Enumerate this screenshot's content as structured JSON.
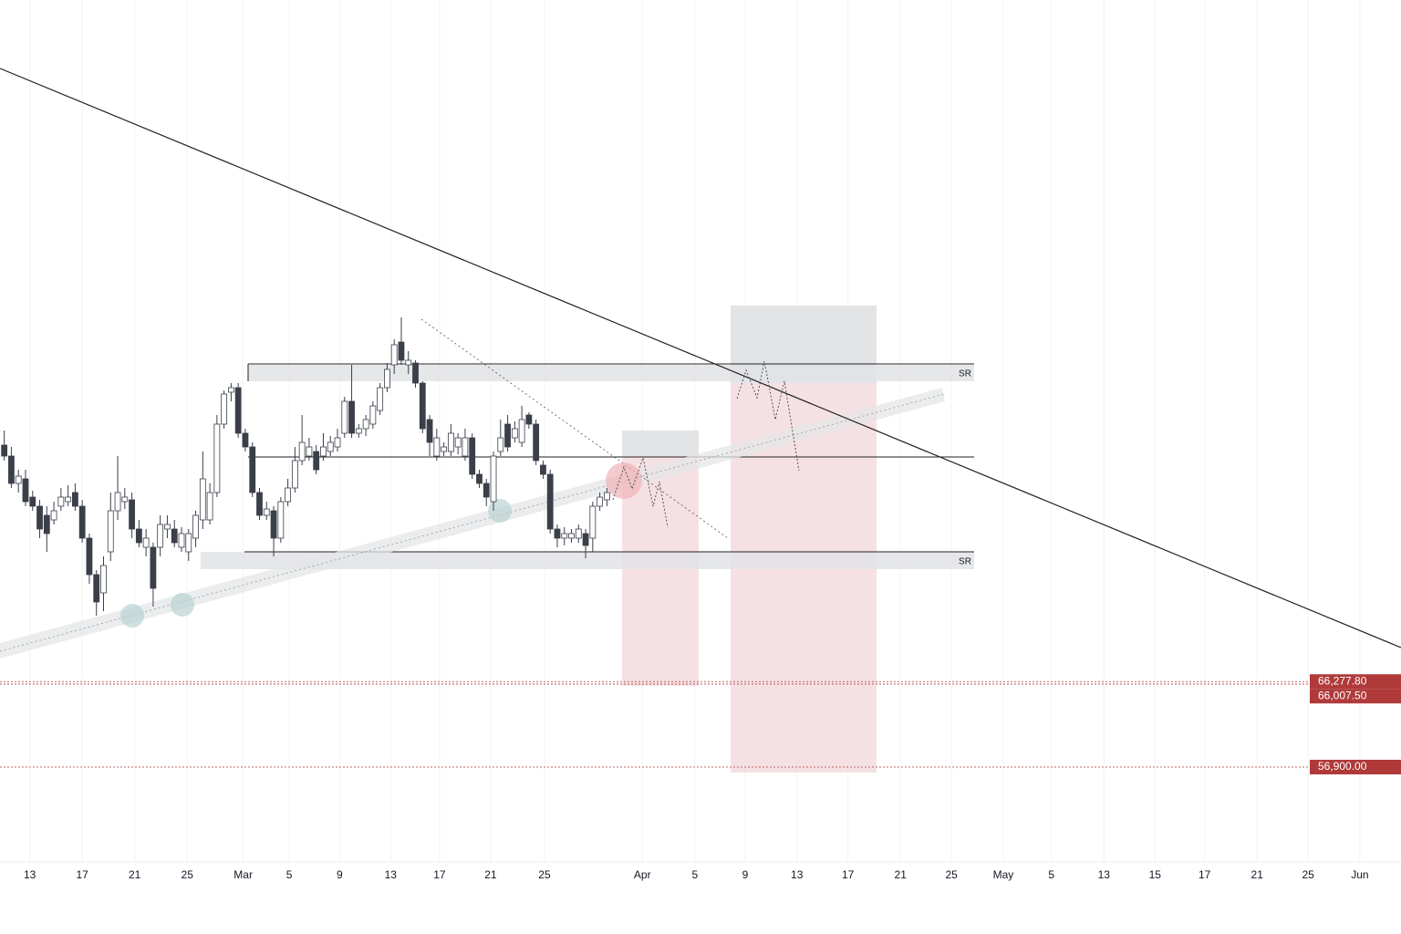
{
  "chart_data": {
    "type": "candlestick",
    "xlim": [
      -0.6,
      197
    ],
    "ylim": [
      46000,
      141000
    ],
    "xticks": [
      {
        "value": 3.6,
        "label": "13"
      },
      {
        "value": 11.0,
        "label": "17"
      },
      {
        "value": 18.4,
        "label": "21"
      },
      {
        "value": 25.8,
        "label": "25"
      },
      {
        "value": 33.7,
        "label": "Mar"
      },
      {
        "value": 40.2,
        "label": "5"
      },
      {
        "value": 47.3,
        "label": "9"
      },
      {
        "value": 54.5,
        "label": "13"
      },
      {
        "value": 61.4,
        "label": "17"
      },
      {
        "value": 68.6,
        "label": "21"
      },
      {
        "value": 76.2,
        "label": "25"
      },
      {
        "value": 90.0,
        "label": "Apr"
      },
      {
        "value": 97.4,
        "label": "5"
      },
      {
        "value": 104.5,
        "label": "9"
      },
      {
        "value": 111.8,
        "label": "13"
      },
      {
        "value": 119.0,
        "label": "17"
      },
      {
        "value": 126.4,
        "label": "21"
      },
      {
        "value": 133.6,
        "label": "25"
      },
      {
        "value": 140.9,
        "label": "May"
      },
      {
        "value": 147.7,
        "label": "5"
      },
      {
        "value": 155.1,
        "label": "13"
      },
      {
        "value": 162.3,
        "label": "15"
      },
      {
        "value": 169.3,
        "label": "17"
      },
      {
        "value": 176.7,
        "label": "21"
      },
      {
        "value": 183.9,
        "label": "25"
      },
      {
        "value": 191.2,
        "label": "Jun"
      }
    ],
    "candles": [
      [
        92200,
        93800,
        90500,
        91000
      ],
      [
        91000,
        92000,
        87500,
        88000
      ],
      [
        88000,
        89500,
        87000,
        88800
      ],
      [
        88500,
        89500,
        85500,
        86000
      ],
      [
        86500,
        87200,
        85000,
        85500
      ],
      [
        85500,
        86200,
        82000,
        83000
      ],
      [
        84500,
        85500,
        80500,
        82500
      ],
      [
        84000,
        86000,
        83500,
        85000
      ],
      [
        85500,
        87500,
        85000,
        86500
      ],
      [
        86000,
        87800,
        85500,
        86500
      ],
      [
        87000,
        88000,
        85000,
        85500
      ],
      [
        85500,
        86200,
        81500,
        82000
      ],
      [
        82000,
        82500,
        77000,
        78000
      ],
      [
        78000,
        78500,
        73500,
        75000
      ],
      [
        76000,
        80000,
        74000,
        79000
      ],
      [
        80500,
        87000,
        79500,
        85000
      ],
      [
        85000,
        91000,
        84000,
        87000
      ],
      [
        86000,
        87500,
        85200,
        86500
      ],
      [
        86200,
        87000,
        82000,
        83000
      ],
      [
        83000,
        84000,
        81000,
        81500
      ],
      [
        81000,
        83000,
        80000,
        82000
      ],
      [
        81000,
        81500,
        74500,
        76500
      ],
      [
        81000,
        84500,
        80000,
        83500
      ],
      [
        83000,
        84500,
        82000,
        83500
      ],
      [
        83000,
        84000,
        81000,
        81500
      ],
      [
        81000,
        83200,
        80500,
        82500
      ],
      [
        80500,
        83000,
        79500,
        82500
      ],
      [
        82000,
        85000,
        81000,
        84500
      ],
      [
        84000,
        91500,
        83000,
        88500
      ],
      [
        84000,
        88000,
        83500,
        87000
      ],
      [
        87000,
        95500,
        86500,
        94500
      ],
      [
        94500,
        98200,
        94000,
        97800
      ],
      [
        98000,
        99000,
        97000,
        98500
      ],
      [
        98500,
        99000,
        93000,
        93500
      ],
      [
        93500,
        94000,
        91500,
        92000
      ],
      [
        92000,
        92500,
        86500,
        87000
      ],
      [
        87000,
        87500,
        84000,
        84500
      ],
      [
        84500,
        86000,
        84000,
        85200
      ],
      [
        85000,
        85500,
        80000,
        82000
      ],
      [
        82000,
        86500,
        81500,
        86000
      ],
      [
        86000,
        88500,
        85500,
        87500
      ],
      [
        87500,
        92000,
        87000,
        90500
      ],
      [
        90500,
        95500,
        90000,
        92500
      ],
      [
        91000,
        93000,
        90500,
        92000
      ],
      [
        91500,
        92200,
        89000,
        89500
      ],
      [
        91000,
        93500,
        90500,
        92000
      ],
      [
        91500,
        93200,
        91000,
        92500
      ],
      [
        92000,
        94000,
        91500,
        93000
      ],
      [
        93500,
        97500,
        93000,
        97000
      ],
      [
        97000,
        101000,
        93000,
        93500
      ],
      [
        93500,
        94500,
        93000,
        94000
      ],
      [
        94000,
        95500,
        93200,
        95000
      ],
      [
        94500,
        97000,
        94000,
        96500
      ],
      [
        96000,
        99000,
        95500,
        98500
      ],
      [
        98500,
        101200,
        98000,
        100500
      ],
      [
        101000,
        103800,
        100000,
        103200
      ],
      [
        103500,
        106200,
        101000,
        101500
      ],
      [
        101000,
        102500,
        100000,
        101500
      ],
      [
        101200,
        101500,
        98500,
        99000
      ],
      [
        99000,
        99200,
        93500,
        94000
      ],
      [
        95000,
        95500,
        91000,
        92500
      ],
      [
        91000,
        94000,
        90500,
        93000
      ],
      [
        91500,
        92500,
        91000,
        92000
      ],
      [
        91500,
        94500,
        91000,
        93500
      ],
      [
        92000,
        93500,
        91200,
        93000
      ],
      [
        91000,
        94000,
        90500,
        93000
      ],
      [
        93000,
        93500,
        88500,
        89000
      ],
      [
        89000,
        89500,
        87500,
        88000
      ],
      [
        88000,
        88500,
        85500,
        86500
      ],
      [
        86000,
        91500,
        85000,
        91000
      ],
      [
        91500,
        95000,
        91000,
        93000
      ],
      [
        94500,
        95500,
        91500,
        92000
      ],
      [
        93000,
        94800,
        92500,
        94000
      ],
      [
        92500,
        96500,
        92000,
        95000
      ],
      [
        95500,
        95800,
        94000,
        94500
      ],
      [
        94500,
        95000,
        90000,
        90500
      ],
      [
        90000,
        90500,
        88500,
        89000
      ],
      [
        89000,
        89500,
        82500,
        83000
      ],
      [
        83000,
        83500,
        81000,
        82000
      ],
      [
        82000,
        83200,
        81200,
        82500
      ],
      [
        82000,
        83000,
        81500,
        82500
      ],
      [
        82000,
        83500,
        81500,
        83000
      ],
      [
        82500,
        83000,
        79800,
        81200
      ],
      [
        82000,
        86000,
        80500,
        85500
      ],
      [
        85500,
        87000,
        85000,
        86500
      ],
      [
        86200,
        87500,
        85500,
        87000
      ]
    ],
    "up_color": "#ffffff",
    "down_color": "#3b3f4a",
    "price_lines": [
      {
        "value": 66277.8,
        "label": "66,277.80"
      },
      {
        "value": 66007.5,
        "label": "66,007.50"
      },
      {
        "value": 56900,
        "label": "56,900.00"
      }
    ],
    "price_line_color": "#b03a3a",
    "annotations": [
      "SR",
      "SR"
    ],
    "grid": true
  }
}
